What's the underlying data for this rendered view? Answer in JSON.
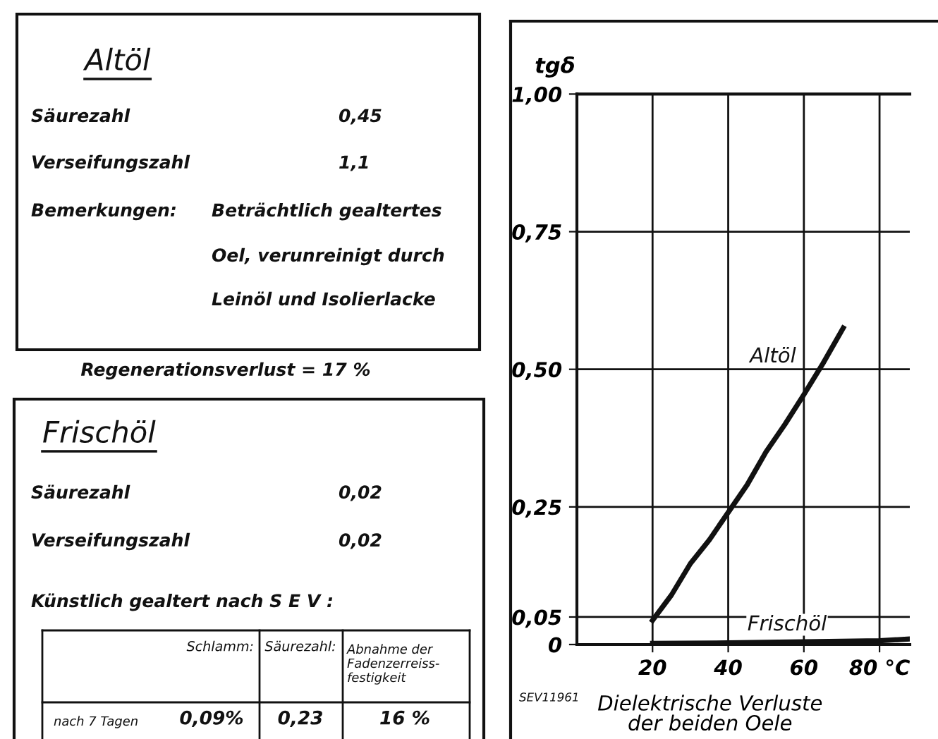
{
  "chart_data": [
    {
      "type": "other",
      "title": "Altöl",
      "annotations": [
        "Säurezahl",
        "0,45",
        "Verseifungszahl",
        "1,1",
        "Bemerkungen:",
        "Beträchtlich gealtertes",
        "Oel, verunreinigt durch",
        "Leinöl und Isolierlacke",
        "Regenerationsverlust = 17 %"
      ]
    },
    {
      "type": "other",
      "title": "Frischöl",
      "annotations": [
        "Säurezahl",
        "0,02",
        "Verseifungszahl",
        "0,02",
        "Künstlich gealtert nach S E V :",
        "Schlamm:",
        "Säurezahl:",
        "Abnahme der\nFadenzerreiss-\nfestigkeit",
        "nach 7 Tagen",
        "0,09%",
        "0,23",
        "16 %"
      ]
    },
    {
      "type": "line",
      "ylabel": "tgδ",
      "xlabel": "Dielektrische Verluste\nder beiden Oele",
      "xlim": [
        0,
        88
      ],
      "ylim": [
        0,
        1.0
      ],
      "xticks": [
        20,
        40,
        60,
        {
          "value": 80,
          "label": "80 °C"
        }
      ],
      "yticks": [
        {
          "value": 0,
          "label": "0"
        },
        {
          "value": 0.05,
          "label": "0,05"
        },
        {
          "value": 0.25,
          "label": "0,25"
        },
        {
          "value": 0.5,
          "label": "0,50"
        },
        {
          "value": 0.75,
          "label": "0,75"
        },
        {
          "value": 1.0,
          "label": "1,00"
        }
      ],
      "grid": true,
      "marker": "none",
      "line_style": "solid",
      "series": [
        {
          "color": "#111111",
          "x": [
            20,
            25,
            30,
            35,
            40,
            45,
            50,
            55,
            60,
            65,
            70.4
          ],
          "values": [
            0.044,
            0.09,
            0.147,
            0.19,
            0.24,
            0.29,
            0.35,
            0.4,
            0.454,
            0.51,
            0.575
          ]
        },
        {
          "color": "#111111",
          "x": [
            20,
            40,
            60,
            80,
            88
          ],
          "values": [
            0.002,
            0.003,
            0.005,
            0.007,
            0.01
          ]
        }
      ],
      "annotations": [
        "Altöl",
        "Frischöl",
        "SEV11961"
      ]
    }
  ]
}
